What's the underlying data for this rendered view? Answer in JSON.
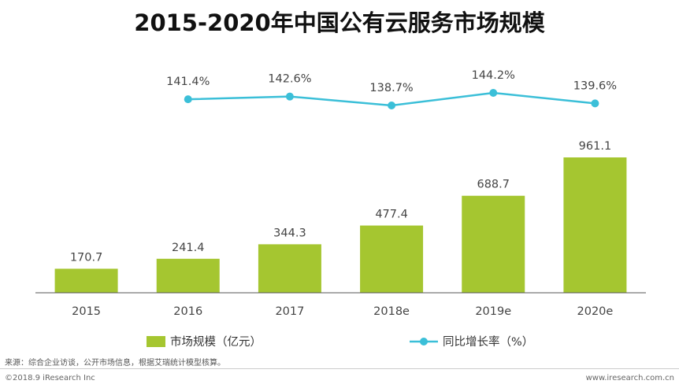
{
  "colors": {
    "bar": "#a5c630",
    "line": "#3bbfd8",
    "axis": "#555555"
  },
  "chart_data": {
    "type": "bar",
    "title": "2015-2020年中国公有云服务市场规模",
    "categories": [
      "2015",
      "2016",
      "2017",
      "2018e",
      "2019e",
      "2020e"
    ],
    "series": [
      {
        "name": "市场规模（亿元）",
        "kind": "bar",
        "values": [
          170.7,
          241.4,
          344.3,
          477.4,
          688.7,
          961.1
        ],
        "labels": [
          "170.7",
          "241.4",
          "344.3",
          "477.4",
          "688.7",
          "961.1"
        ]
      },
      {
        "name": "同比增长率（%）",
        "kind": "line",
        "values": [
          null,
          141.4,
          142.6,
          138.7,
          144.2,
          139.6
        ],
        "labels": [
          "",
          "141.4%",
          "142.6%",
          "138.7%",
          "144.2%",
          "139.6%"
        ]
      }
    ],
    "ylim": [
      0,
      961.1
    ],
    "line_ylim": [
      130,
      150
    ]
  },
  "footer": {
    "source": "来源：综合企业访谈，公开市场信息，根据艾瑞统计模型核算。",
    "copyright": "©2018.9 iResearch Inc",
    "website": "www.iresearch.com.cn"
  }
}
